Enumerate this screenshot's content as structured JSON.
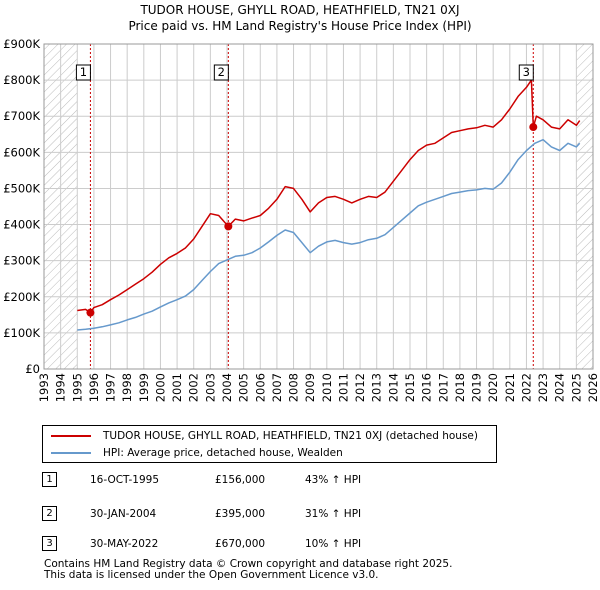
{
  "title_line1": "TUDOR HOUSE, GHYLL ROAD, HEATHFIELD, TN21 0XJ",
  "title_line2": "Price paid vs. HM Land Registry's House Price Index (HPI)",
  "colors": {
    "property": "#cc0000",
    "hpi": "#6699cc",
    "grid": "#cccccc",
    "hatch": "#bbbbbb",
    "vline": "#cc0000"
  },
  "chart_data": {
    "type": "line",
    "xlim": [
      1993.0,
      2026.0
    ],
    "ylim": [
      0,
      900000
    ],
    "y_ticks": [
      {
        "value": 0,
        "label": "£0"
      },
      {
        "value": 100000,
        "label": "£100K"
      },
      {
        "value": 200000,
        "label": "£200K"
      },
      {
        "value": 300000,
        "label": "£300K"
      },
      {
        "value": 400000,
        "label": "£400K"
      },
      {
        "value": 500000,
        "label": "£500K"
      },
      {
        "value": 600000,
        "label": "£600K"
      },
      {
        "value": 700000,
        "label": "£700K"
      },
      {
        "value": 800000,
        "label": "£800K"
      },
      {
        "value": 900000,
        "label": "£900K"
      }
    ],
    "x_ticks": [
      "1993",
      "1994",
      "1995",
      "1996",
      "1997",
      "1998",
      "1999",
      "2000",
      "2001",
      "2002",
      "2003",
      "2004",
      "2005",
      "2006",
      "2007",
      "2008",
      "2009",
      "2010",
      "2011",
      "2012",
      "2013",
      "2014",
      "2015",
      "2016",
      "2017",
      "2018",
      "2019",
      "2020",
      "2021",
      "2022",
      "2023",
      "2024",
      "2025",
      "2026"
    ],
    "hatched_ranges": [
      [
        1993.0,
        1995.0
      ],
      [
        2025.0,
        2026.0
      ]
    ],
    "grid": true,
    "legend_placement": "below",
    "series": [
      {
        "name": "TUDOR HOUSE, GHYLL ROAD, HEATHFIELD, TN21 0XJ (detached house)",
        "color_key": "property",
        "x": [
          1995.0,
          1995.5,
          1995.79,
          1996.0,
          1996.5,
          1997.0,
          1997.5,
          1998.0,
          1998.5,
          1999.0,
          1999.5,
          2000.0,
          2000.5,
          2001.0,
          2001.5,
          2002.0,
          2002.5,
          2003.0,
          2003.5,
          2004.08,
          2004.5,
          2005.0,
          2005.5,
          2006.0,
          2006.5,
          2007.0,
          2007.5,
          2008.0,
          2008.5,
          2009.0,
          2009.5,
          2010.0,
          2010.5,
          2011.0,
          2011.5,
          2012.0,
          2012.5,
          2013.0,
          2013.5,
          2014.0,
          2014.5,
          2015.0,
          2015.5,
          2016.0,
          2016.5,
          2017.0,
          2017.5,
          2018.0,
          2018.5,
          2019.0,
          2019.5,
          2020.0,
          2020.5,
          2021.0,
          2021.5,
          2022.0,
          2022.3,
          2022.41,
          2022.6,
          2023.0,
          2023.5,
          2024.0,
          2024.5,
          2025.0,
          2025.2
        ],
        "y": [
          162000,
          165000,
          156000,
          170000,
          178000,
          192000,
          205000,
          220000,
          235000,
          250000,
          268000,
          290000,
          308000,
          320000,
          335000,
          360000,
          395000,
          430000,
          425000,
          395000,
          415000,
          410000,
          418000,
          425000,
          445000,
          470000,
          505000,
          500000,
          470000,
          435000,
          460000,
          475000,
          478000,
          470000,
          460000,
          470000,
          478000,
          475000,
          490000,
          520000,
          550000,
          580000,
          605000,
          620000,
          625000,
          640000,
          655000,
          660000,
          665000,
          668000,
          675000,
          670000,
          690000,
          720000,
          755000,
          780000,
          800000,
          670000,
          700000,
          690000,
          670000,
          665000,
          690000,
          675000,
          688000
        ]
      },
      {
        "name": "HPI: Average price, detached house, Wealden",
        "color_key": "hpi",
        "x": [
          1995.0,
          1995.5,
          1996.0,
          1996.5,
          1997.0,
          1997.5,
          1998.0,
          1998.5,
          1999.0,
          1999.5,
          2000.0,
          2000.5,
          2001.0,
          2001.5,
          2002.0,
          2002.5,
          2003.0,
          2003.5,
          2004.0,
          2004.5,
          2005.0,
          2005.5,
          2006.0,
          2006.5,
          2007.0,
          2007.5,
          2008.0,
          2008.5,
          2009.0,
          2009.5,
          2010.0,
          2010.5,
          2011.0,
          2011.5,
          2012.0,
          2012.5,
          2013.0,
          2013.5,
          2014.0,
          2014.5,
          2015.0,
          2015.5,
          2016.0,
          2016.5,
          2017.0,
          2017.5,
          2018.0,
          2018.5,
          2019.0,
          2019.5,
          2020.0,
          2020.5,
          2021.0,
          2021.5,
          2022.0,
          2022.5,
          2023.0,
          2023.5,
          2024.0,
          2024.5,
          2025.0,
          2025.2
        ],
        "y": [
          108000,
          110000,
          113000,
          117000,
          122000,
          128000,
          136000,
          143000,
          152000,
          160000,
          172000,
          183000,
          192000,
          202000,
          220000,
          245000,
          270000,
          292000,
          302000,
          312000,
          315000,
          322000,
          335000,
          352000,
          370000,
          385000,
          378000,
          350000,
          322000,
          340000,
          352000,
          356000,
          350000,
          346000,
          350000,
          358000,
          362000,
          372000,
          392000,
          412000,
          432000,
          452000,
          462000,
          470000,
          478000,
          486000,
          490000,
          494000,
          496000,
          500000,
          498000,
          515000,
          545000,
          580000,
          605000,
          625000,
          635000,
          615000,
          605000,
          625000,
          615000,
          625000
        ]
      }
    ],
    "sales": [
      {
        "num": "1",
        "x": 1995.79,
        "y": 156000
      },
      {
        "num": "2",
        "x": 2004.08,
        "y": 395000
      },
      {
        "num": "3",
        "x": 2022.41,
        "y": 670000
      }
    ]
  },
  "legend": {
    "property_label": "TUDOR HOUSE, GHYLL ROAD, HEATHFIELD, TN21 0XJ (detached house)",
    "hpi_label": "HPI: Average price, detached house, Wealden"
  },
  "sales_table": [
    {
      "num": "1",
      "date": "16-OCT-1995",
      "price": "£156,000",
      "hpi": "43% ↑ HPI"
    },
    {
      "num": "2",
      "date": "30-JAN-2004",
      "price": "£395,000",
      "hpi": "31% ↑ HPI"
    },
    {
      "num": "3",
      "date": "30-MAY-2022",
      "price": "£670,000",
      "hpi": "10% ↑ HPI"
    }
  ],
  "footer_line1": "Contains HM Land Registry data © Crown copyright and database right 2025.",
  "footer_line2": "This data is licensed under the Open Government Licence v3.0."
}
